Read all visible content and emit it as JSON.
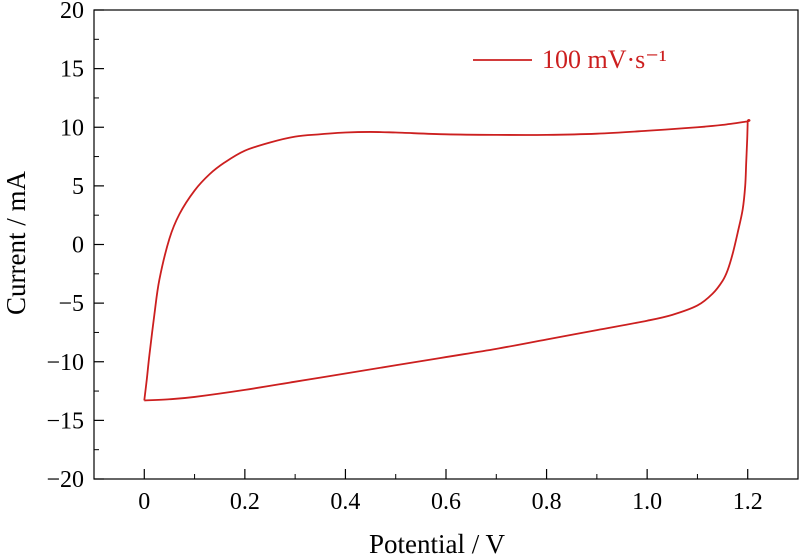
{
  "chart_data": {
    "type": "line",
    "title": "",
    "xlabel": "Potential / V",
    "ylabel": "Current / mA",
    "xlim": [
      -0.1,
      1.3
    ],
    "ylim": [
      -20,
      20
    ],
    "x_ticks": [
      0,
      0.2,
      0.4,
      0.6,
      0.8,
      1.0,
      1.2
    ],
    "x_tick_labels": [
      "0",
      "0.2",
      "0.4",
      "0.6",
      "0.8",
      "1.0",
      "1.2"
    ],
    "y_ticks": [
      -20,
      -15,
      -10,
      -5,
      0,
      5,
      10,
      15,
      20
    ],
    "y_tick_labels": [
      "−20",
      "−15",
      "−10",
      "−5",
      "0",
      "5",
      "10",
      "15",
      "20"
    ],
    "grid": false,
    "legend_position": "top-right",
    "series": [
      {
        "name": "100 mV·s⁻¹",
        "color": "#cc1f1f",
        "x": [
          0.0,
          0.005,
          0.01,
          0.02,
          0.03,
          0.05,
          0.07,
          0.1,
          0.13,
          0.16,
          0.2,
          0.25,
          0.3,
          0.35,
          0.4,
          0.45,
          0.5,
          0.6,
          0.7,
          0.8,
          0.9,
          1.0,
          1.1,
          1.15,
          1.2,
          1.2,
          1.199,
          1.197,
          1.195,
          1.19,
          1.18,
          1.17,
          1.16,
          1.15,
          1.13,
          1.1,
          1.05,
          1.0,
          0.9,
          0.8,
          0.7,
          0.6,
          0.5,
          0.4,
          0.3,
          0.2,
          0.1,
          0.05,
          0.0
        ],
        "y": [
          -13.3,
          -11.5,
          -9.5,
          -6.0,
          -3.0,
          0.5,
          2.6,
          4.6,
          6.0,
          7.0,
          8.0,
          8.7,
          9.2,
          9.4,
          9.55,
          9.6,
          9.55,
          9.4,
          9.35,
          9.35,
          9.45,
          9.7,
          10.0,
          10.2,
          10.5,
          10.5,
          9.0,
          7.0,
          5.0,
          3.0,
          1.0,
          -0.8,
          -2.2,
          -3.1,
          -4.2,
          -5.2,
          -6.0,
          -6.5,
          -7.3,
          -8.1,
          -8.9,
          -9.6,
          -10.3,
          -11.0,
          -11.7,
          -12.4,
          -13.0,
          -13.2,
          -13.3
        ]
      }
    ]
  }
}
